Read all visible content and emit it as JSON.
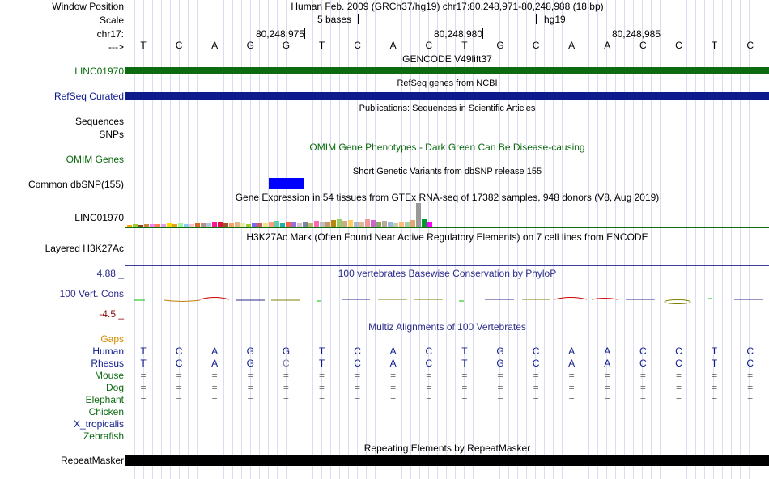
{
  "header": {
    "window_position_label": "Window Position",
    "scale_label": "Scale",
    "chrom_label": "chr17:",
    "arrow_label": "--->",
    "position_text": "Human Feb. 2009 (GRCh37/hg19)   chr17:80,248,971-80,248,988 (18 bp)",
    "scale_bases": "5 bases",
    "assembly": "hg19",
    "ruler_ticks": [
      "80,248,975",
      "80,248,980",
      "80,248,985"
    ]
  },
  "bases": [
    "T",
    "C",
    "A",
    "G",
    "G",
    "T",
    "C",
    "A",
    "C",
    "T",
    "G",
    "C",
    "A",
    "A",
    "C",
    "C",
    "T",
    "C"
  ],
  "tracks": {
    "gencode": {
      "title": "GENCODE V49lift37",
      "label": "LINC01970",
      "color": "#0c6b10"
    },
    "refseq": {
      "title": "RefSeq genes from NCBI",
      "label": "RefSeq Curated",
      "color": "#0c1a8c"
    },
    "publications": {
      "title": "Publications: Sequences in Scientific Articles",
      "labels": [
        "Sequences",
        "SNPs"
      ]
    },
    "omim": {
      "title": "OMIM Gene Phenotypes - Dark Green Can Be Disease-causing",
      "label": "OMIM Genes",
      "color": "#0c6b10"
    },
    "dbsnp": {
      "title": "Short Genetic Variants from dbSNP release 155",
      "label": "Common dbSNP(155)",
      "color": "#0000ff"
    },
    "gtex": {
      "title": "Gene Expression in 54 tissues from GTEx RNA-seq of 17382 samples, 948 donors (V8, Aug 2019)",
      "label": "LINC01970"
    },
    "h3k27ac": {
      "title": "H3K27Ac Mark (Often Found Near Active Regulatory Elements) on 7 cell lines from ENCODE",
      "label": "Layered H3K27Ac"
    },
    "phylop": {
      "title": "100 vertebrates Basewise Conservation by PhyloP",
      "label": "100 Vert. Cons",
      "max": "4.88 _",
      "min": "-4.5 _",
      "color": "#2c2c8c"
    },
    "multiz": {
      "title": "Multiz Alignments of 100 Vertebrates",
      "gaps_label": "Gaps",
      "species": [
        {
          "name": "Human",
          "row": [
            "T",
            "C",
            "A",
            "G",
            "G",
            "T",
            "C",
            "A",
            "C",
            "T",
            "G",
            "C",
            "A",
            "A",
            "C",
            "C",
            "T",
            "C"
          ]
        },
        {
          "name": "Rhesus",
          "row": [
            "T",
            "C",
            "A",
            "G",
            "C",
            "T",
            "C",
            "A",
            "C",
            "T",
            "G",
            "C",
            "A",
            "A",
            "C",
            "C",
            "T",
            "C"
          ]
        },
        {
          "name": "Mouse",
          "row": [
            "=",
            "=",
            "=",
            "=",
            "=",
            "=",
            "=",
            "=",
            "=",
            "=",
            "=",
            "=",
            "=",
            "=",
            "=",
            "=",
            "=",
            "="
          ]
        },
        {
          "name": "Dog",
          "row": [
            "=",
            "=",
            "=",
            "=",
            "=",
            "=",
            "=",
            "=",
            "=",
            "=",
            "=",
            "=",
            "=",
            "=",
            "=",
            "=",
            "=",
            "="
          ]
        },
        {
          "name": "Elephant",
          "row": [
            "=",
            "=",
            "=",
            "=",
            "=",
            "=",
            "=",
            "=",
            "=",
            "=",
            "=",
            "=",
            "=",
            "=",
            "=",
            "=",
            "=",
            "="
          ]
        },
        {
          "name": "Chicken",
          "row": []
        },
        {
          "name": "X_tropicalis",
          "row": []
        },
        {
          "name": "Zebrafish",
          "row": []
        }
      ]
    },
    "repeatmasker": {
      "title": "Repeating Elements by RepeatMasker",
      "label": "RepeatMasker"
    }
  },
  "gtex_values": [
    0.08,
    0.1,
    0.07,
    0.12,
    0.09,
    0.11,
    0.1,
    0.14,
    0.12,
    0.16,
    0.1,
    0.12,
    0.18,
    0.14,
    0.15,
    0.22,
    0.2,
    0.16,
    0.18,
    0.2,
    0.14,
    0.12,
    0.16,
    0.18,
    0.14,
    0.2,
    0.24,
    0.18,
    0.2,
    0.22,
    0.16,
    0.2,
    0.18,
    0.24,
    0.2,
    0.22,
    0.26,
    0.3,
    0.24,
    0.28,
    0.2,
    0.22,
    0.3,
    0.26,
    0.22,
    0.24,
    0.2,
    0.18,
    0.22,
    0.2,
    0.26,
    1.0,
    0.3,
    0.2
  ],
  "gtex_colors": [
    "#ffa500",
    "#9acd32",
    "#8b4513",
    "#cd853f",
    "#ee82ee",
    "#ff7f50",
    "#dda0dd",
    "#ffd700",
    "#daa520",
    "#98fb98",
    "#87cefa",
    "#ffc0cb",
    "#d2691e",
    "#bc8f8f",
    "#b0c4de",
    "#ff1493",
    "#dc143c",
    "#a0522d",
    "#f4a460",
    "#deb887",
    "#eee8aa",
    "#9acd32",
    "#7b68ee",
    "#cd5c5c",
    "#f0e68c",
    "#ffa07a",
    "#66cdaa",
    "#20b2aa",
    "#ff6347",
    "#9370db",
    "#d8bfd8",
    "#778899",
    "#bdb76b",
    "#ff69b4",
    "#c0c0c0",
    "#cc9966",
    "#b8860b",
    "#99cc66",
    "#ccaa88",
    "#ffcc66",
    "#aabbcc",
    "#ddbb99",
    "#ee9999",
    "#cc66cc",
    "#88aa66",
    "#bbaa99",
    "#99bbdd",
    "#ccccaa",
    "#ffbb77",
    "#aaccaa",
    "#ddaa77",
    "#999999",
    "#009933",
    "#ff00ff"
  ]
}
